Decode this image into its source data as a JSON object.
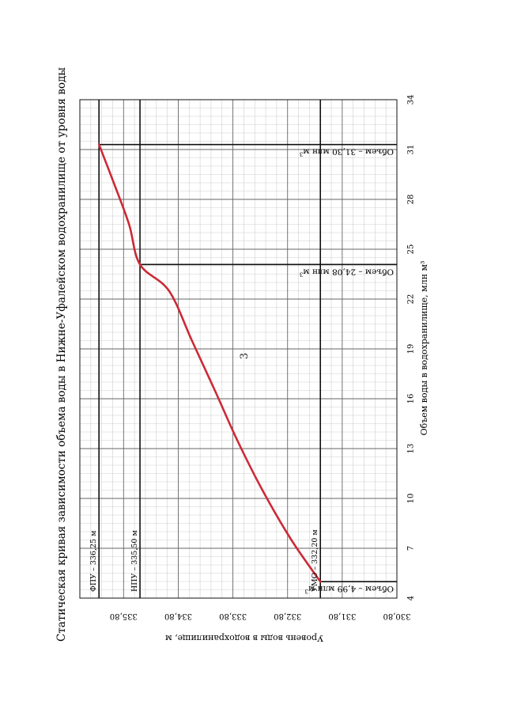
{
  "page": {
    "number": "3"
  },
  "chart_data": {
    "type": "line",
    "title": "Статическая кривая зависимости объема воды в Нижне-Уфалейском водохранилище от уровня воды",
    "xlabel": "Объем воды в водохранилище, млн м³",
    "ylabel": "Уровень воды в водохранилище, м",
    "xlim": [
      4,
      34
    ],
    "ylim": [
      330.8,
      336.6
    ],
    "x_ticks": [
      4,
      7,
      10,
      13,
      16,
      19,
      22,
      25,
      28,
      31,
      34
    ],
    "x_tick_labels": [
      "4",
      "7",
      "10",
      "13",
      "16",
      "19",
      "22",
      "25",
      "28",
      "31",
      "34"
    ],
    "y_ticks": [
      330.8,
      331.8,
      332.8,
      333.8,
      334.8,
      335.8
    ],
    "y_tick_labels": [
      "330,80",
      "331,80",
      "332,80",
      "333,80",
      "334,80",
      "335,80"
    ],
    "grid": true,
    "series": [
      {
        "name": "",
        "color": "#cc2a36",
        "x": [
          4.99,
          7.5,
          10.5,
          13.5,
          16.5,
          19.5,
          22.5,
          24.08,
          26.5,
          29,
          31.3
        ],
        "y": [
          332.2,
          332.73,
          333.26,
          333.72,
          334.13,
          334.55,
          334.97,
          335.5,
          335.7,
          335.98,
          336.25
        ]
      }
    ],
    "reference_lines": [
      {
        "label": "ФПУ – 336,25 м",
        "y": 336.25,
        "x": 31.3,
        "volume_label": "Объем – 31,30 млн м³"
      },
      {
        "label": "НПУ – 335,50 м",
        "y": 335.5,
        "x": 24.08,
        "volume_label": "Объем – 24,08 млн м³"
      },
      {
        "label": "УМО – 332,20 м",
        "y": 332.2,
        "x": 4.99,
        "volume_label": "Объем – 4,99 млн м³"
      }
    ]
  }
}
